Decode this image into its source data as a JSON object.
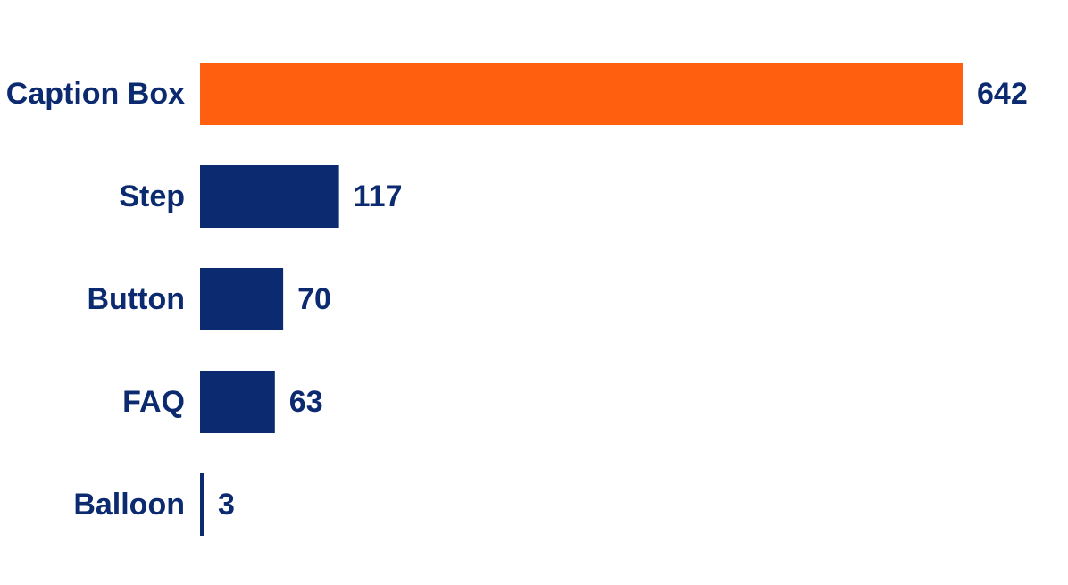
{
  "chart_data": {
    "type": "bar",
    "orientation": "horizontal",
    "categories": [
      "Caption Box",
      "Step",
      "Button",
      "FAQ",
      "Balloon"
    ],
    "values": [
      642,
      117,
      70,
      63,
      3
    ],
    "colors": [
      "#ff5f0f",
      "#0b2a6f",
      "#0b2a6f",
      "#0b2a6f",
      "#0b2a6f"
    ],
    "label_color": "#0b2a6f"
  }
}
